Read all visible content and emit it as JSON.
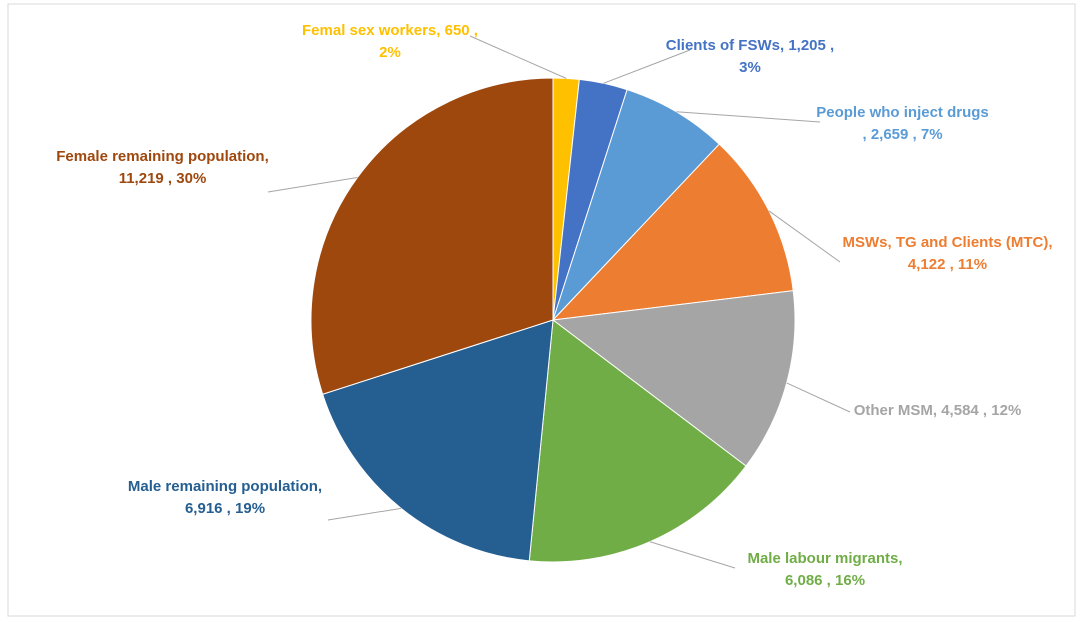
{
  "chart_data": {
    "type": "pie",
    "categories": [
      "Femal sex workers,",
      "Clients of FSWs,",
      "People who inject drugs ,",
      "MSWs, TG and Clients (MTC),",
      "Other MSM,",
      "Male labour migrants,",
      "Male remaining population,",
      "Female remaining population,"
    ],
    "values": [
      650,
      1205,
      2659,
      4122,
      4584,
      6086,
      6916,
      11219
    ],
    "value_labels": [
      "650 , 2%",
      "1,205 , 3%",
      "2,659 , 7%",
      "4,122 , 11%",
      "4,584 , 12%",
      "6,086 , 16%",
      "6,916 , 19%",
      "11,219 , 30%"
    ],
    "colors": [
      "#FFC000",
      "#4472C4",
      "#5B9BD5",
      "#ED7D31",
      "#A5A5A5",
      "#70AD47",
      "#255E91",
      "#9E480E"
    ]
  }
}
